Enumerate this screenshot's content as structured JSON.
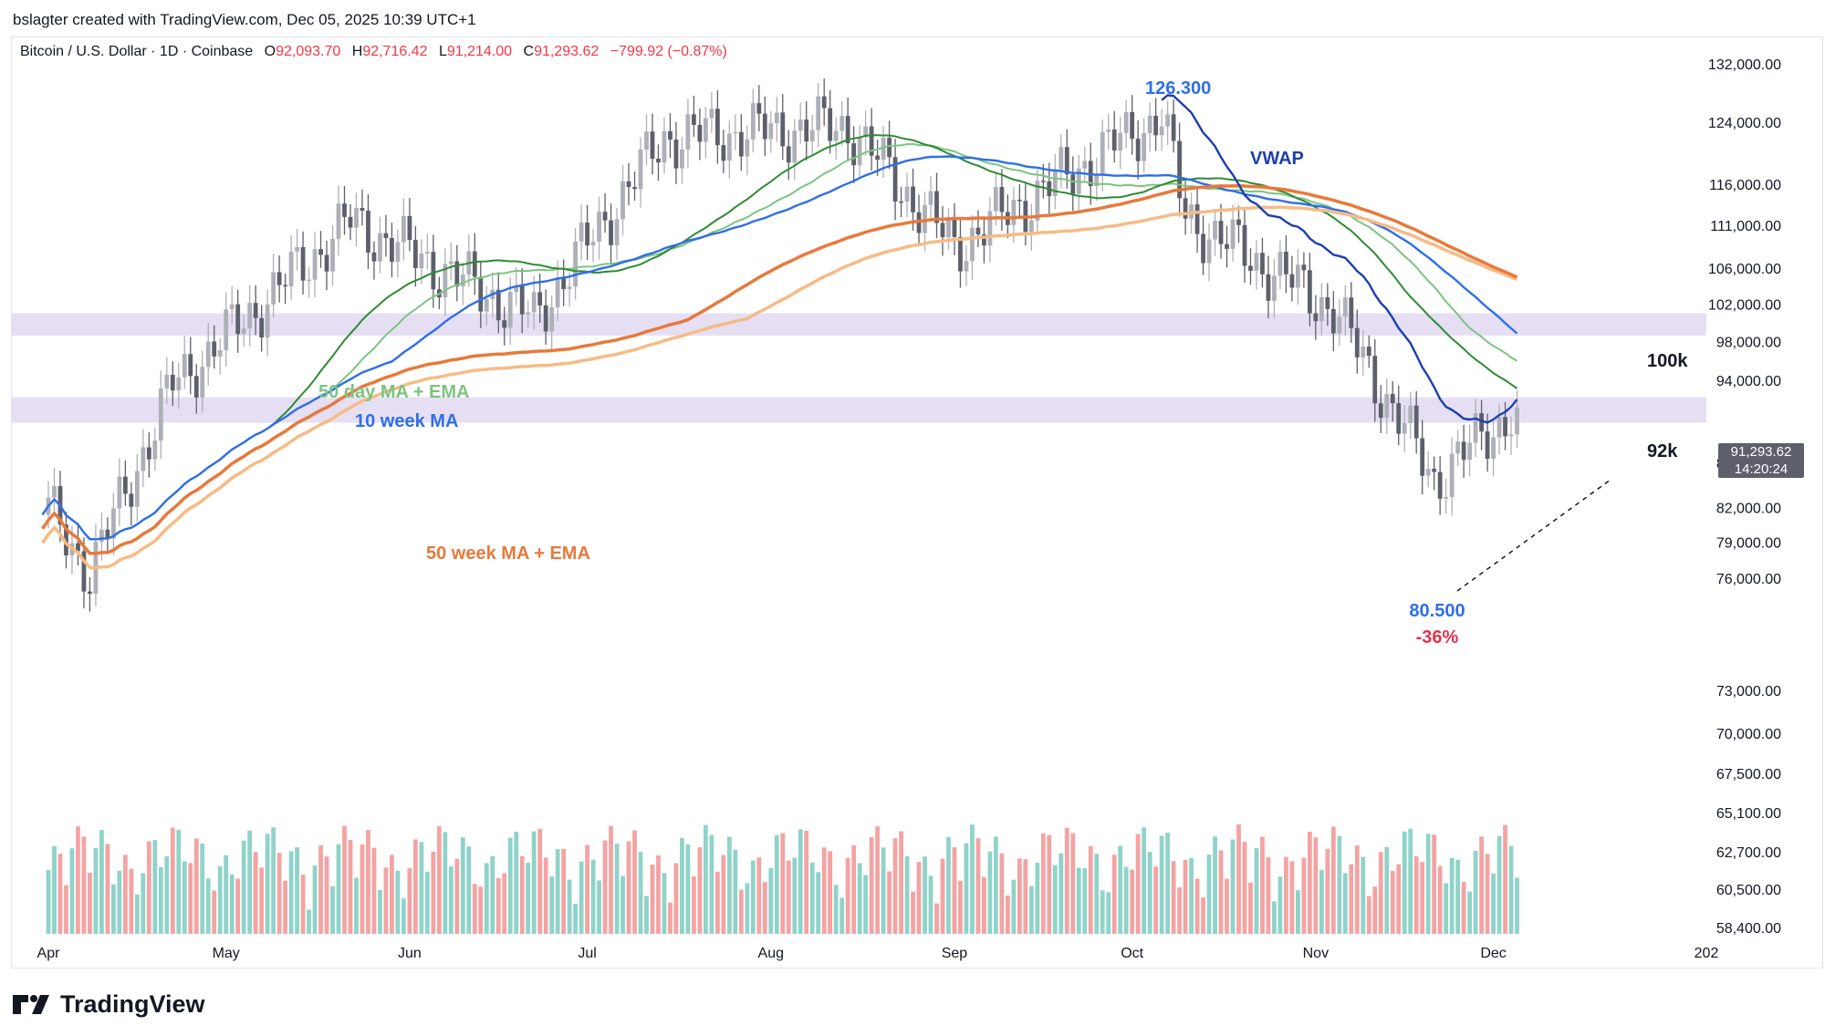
{
  "header": {
    "credit": "bslagter created with TradingView.com, Dec 05, 2025 10:39 UTC+1"
  },
  "legend": {
    "symbol": "Bitcoin / U.S. Dollar · 1D · Coinbase",
    "o_label": "O",
    "o_value": "92,093.70",
    "h_label": "H",
    "h_value": "92,716.42",
    "l_label": "L",
    "l_value": "91,214.00",
    "c_label": "C",
    "c_value": "91,293.62",
    "change": "−799.92 (−0.87%)"
  },
  "price_tag": {
    "price": "91,293.62",
    "countdown": "14:20:24"
  },
  "branding": {
    "logo_text": "TradingView"
  },
  "colors": {
    "up": "#aeb0b8",
    "down": "#5d606b",
    "volume_up": "#8fd3c9",
    "volume_down": "#f4a3a3",
    "ma50_day": "#7cc481",
    "ema50_day": "#2e8b32",
    "ma10_week": "#2f6ee8",
    "vwap": "#1c3fae",
    "ma50_week_light": "#f6bb85",
    "ema50_week": "#e8793b",
    "zone": "#e6dff4",
    "annotation_blue": "#2f6ee8",
    "annotation_red": "#e0334b",
    "axis_text": "#131722"
  },
  "chart_data": {
    "type": "candlestick",
    "title": "Bitcoin / U.S. Dollar · 1D · Coinbase",
    "y_axis_ticks": [
      "132,000.00",
      "124,000.00",
      "116,000.00",
      "111,000.00",
      "106,000.00",
      "102,000.00",
      "98,000.00",
      "94,000.00",
      "86,000.00",
      "82,000.00",
      "79,000.00",
      "76,000.00",
      "73,000.00",
      "70,000.00",
      "67,500.00",
      "65,100.00",
      "62,700.00",
      "60,500.00",
      "58,400.00"
    ],
    "x_axis_ticks": [
      "Apr",
      "May",
      "Jun",
      "Jul",
      "Aug",
      "Sep",
      "Oct",
      "Nov",
      "Dec",
      "202"
    ],
    "y_scale": "log",
    "annotations": {
      "high_value": "126.300",
      "low_value": "80.500",
      "drawdown": "-36%",
      "zone_upper_label": "100k",
      "zone_lower_label": "92k",
      "label_vwap": "VWAP",
      "label_50day": "50 day MA + EMA",
      "label_10week": "10 week MA",
      "label_50week": "50 week MA + EMA"
    },
    "zones": [
      {
        "label": "100k",
        "from": 98600,
        "to": 101000
      },
      {
        "label": "92k",
        "from": 89800,
        "to": 92300
      }
    ],
    "price_series_monthly_anchor": [
      {
        "date": "2025-03-31",
        "close": 82500
      },
      {
        "date": "2025-04-08",
        "close": 76500
      },
      {
        "date": "2025-04-22",
        "close": 93500
      },
      {
        "date": "2025-05-22",
        "close": 111500
      },
      {
        "date": "2025-06-22",
        "close": 100500
      },
      {
        "date": "2025-07-14",
        "close": 122000
      },
      {
        "date": "2025-08-14",
        "close": 123500
      },
      {
        "date": "2025-09-01",
        "close": 108500
      },
      {
        "date": "2025-10-06",
        "close": 125000
      },
      {
        "date": "2025-10-10",
        "close": 112000
      },
      {
        "date": "2025-11-04",
        "close": 101500
      },
      {
        "date": "2025-11-21",
        "close": 84500
      },
      {
        "date": "2025-12-05",
        "close": 91293.62
      }
    ]
  }
}
